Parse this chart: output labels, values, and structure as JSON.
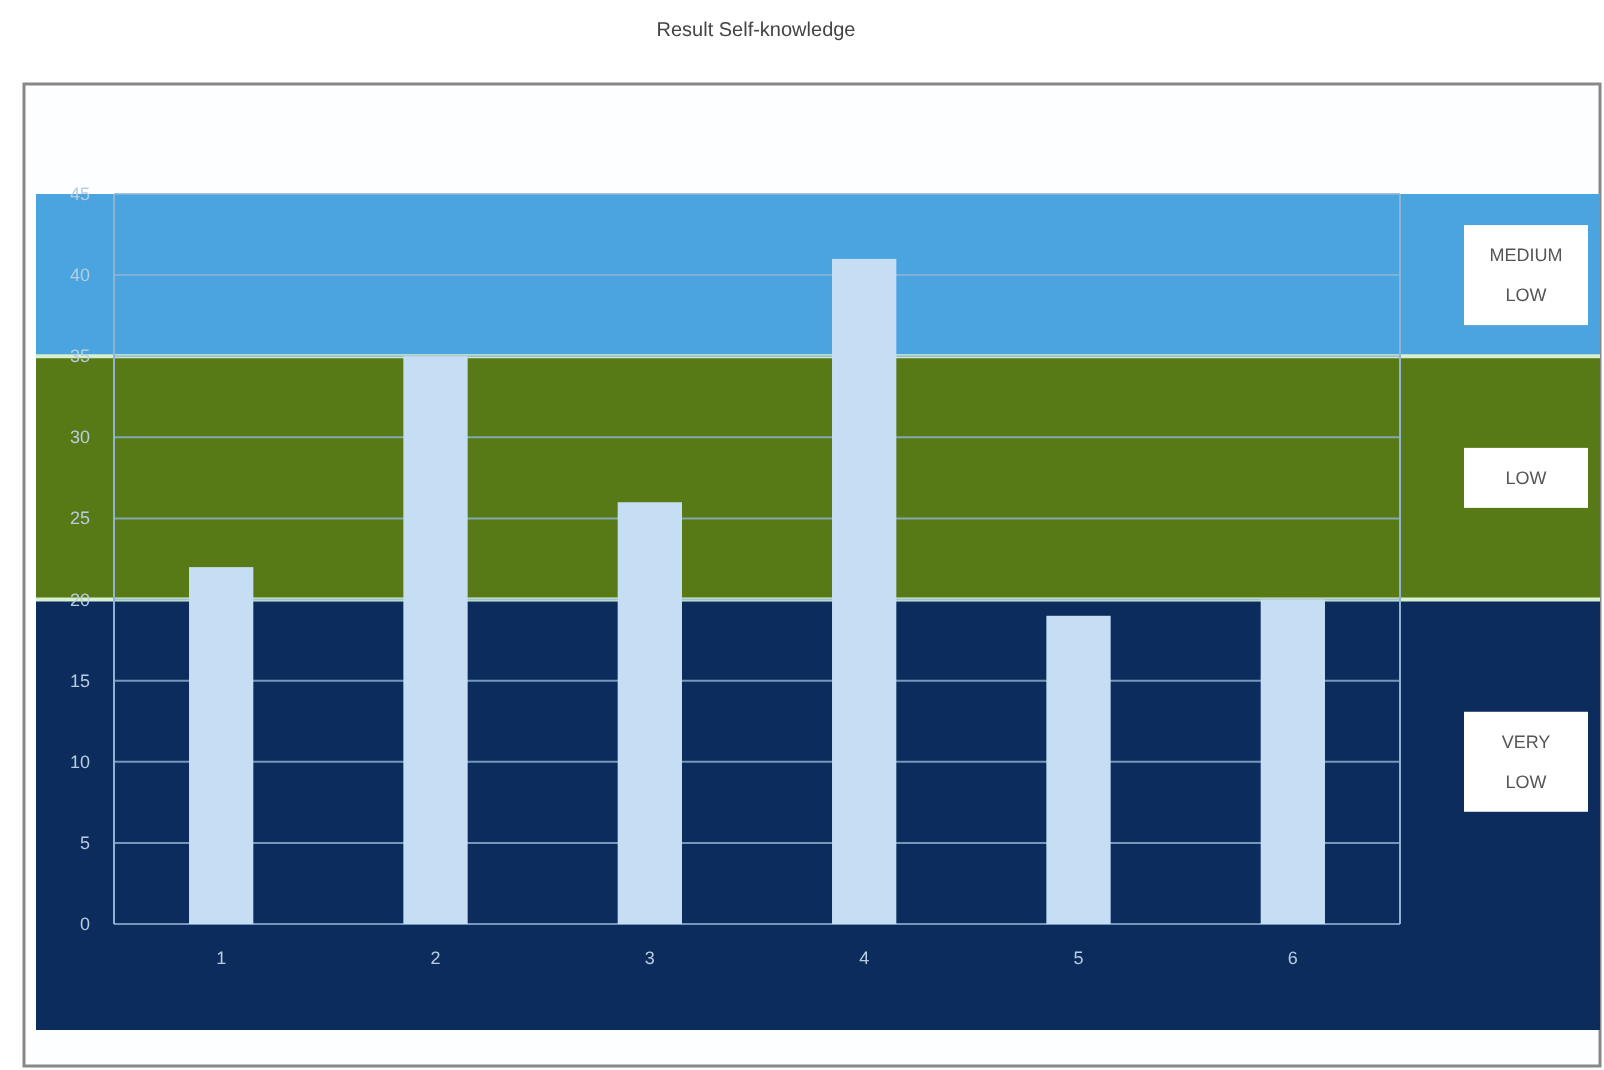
{
  "chart_data": {
    "type": "bar",
    "title": "Result Self-knowledge",
    "categories": [
      "1",
      "2",
      "3",
      "4",
      "5",
      "6"
    ],
    "values": [
      22,
      35,
      26,
      41,
      19,
      20
    ],
    "color": "#c6def4",
    "ylim": [
      0,
      45
    ],
    "yticks": [
      0,
      5,
      10,
      15,
      20,
      25,
      30,
      35,
      40,
      45
    ],
    "grid": "y",
    "bands": [
      {
        "axis": "y",
        "from": 0,
        "to": 20,
        "label": "VERY LOW",
        "color": "#0b2c5c"
      },
      {
        "axis": "y",
        "from": 20,
        "to": 35,
        "label": "LOW",
        "color": "#587a16"
      },
      {
        "axis": "y",
        "from": 35,
        "to": 45,
        "label": "MEDIUM LOW",
        "color": "#49a4e0"
      }
    ]
  }
}
